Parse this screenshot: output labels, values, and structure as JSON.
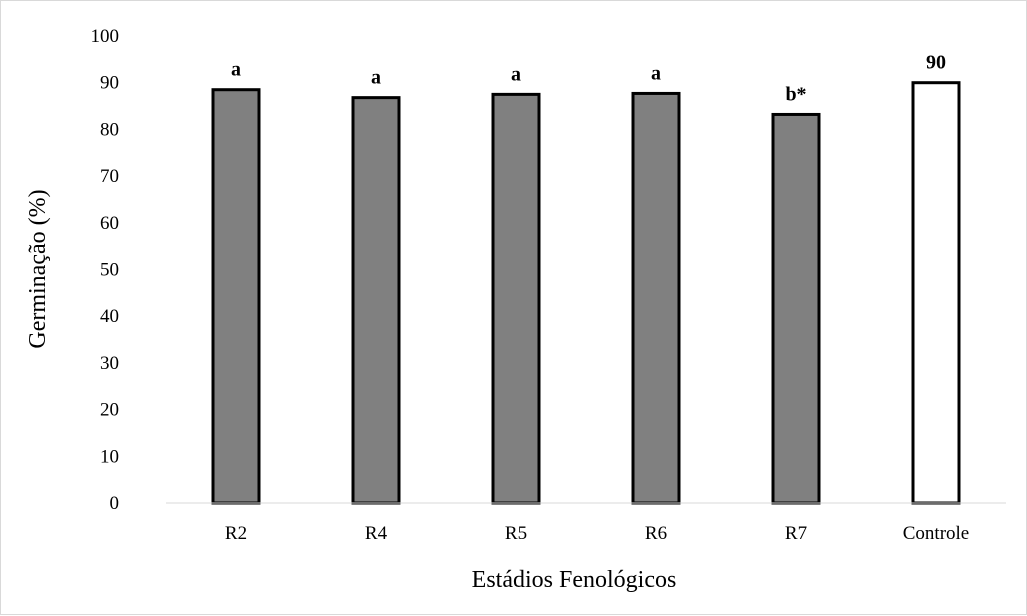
{
  "chart_data": {
    "type": "bar",
    "categories": [
      "R2",
      "R4",
      "R5",
      "R6",
      "R7",
      "Controle"
    ],
    "values": [
      88.5,
      86.8,
      87.5,
      87.7,
      83.2,
      90
    ],
    "data_labels": [
      "a",
      "a",
      "a",
      "a",
      "b*",
      "90"
    ],
    "bar_colors": [
      "#808080",
      "#808080",
      "#808080",
      "#808080",
      "#808080",
      "#ffffff"
    ],
    "bar_border_color": "#000000",
    "title": "",
    "xlabel": "Estádios Fenológicos",
    "ylabel": "Germinação (%)",
    "ylim": [
      0,
      100
    ],
    "yticks": [
      "0",
      "10",
      "20",
      "30",
      "40",
      "50",
      "60",
      "70",
      "80",
      "90",
      "100"
    ],
    "grid": false,
    "legend": "none"
  }
}
